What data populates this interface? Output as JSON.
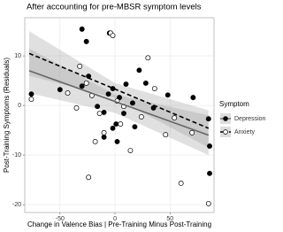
{
  "chart_data": {
    "type": "scatter",
    "title": "After accounting for pre-MBSR symptom levels",
    "x_label": "Change in Valence Bias | Pre-Training Minus Post-Training",
    "y_label": "Post-Training Symptoms (Residuals)",
    "legend_title": "Symptom",
    "legend_position": "right",
    "grid": true,
    "xlim": [
      -82,
      90
    ],
    "xticks": [
      -50,
      0,
      50
    ],
    "ylim": [
      -21.6,
      17.7
    ],
    "yticks": [
      -20,
      -10,
      0,
      10
    ],
    "series": [
      {
        "name": "Depression",
        "color": "#000000",
        "line_color": "#666666",
        "dashed": false,
        "x": [
          -30,
          -26,
          -5,
          -50,
          -76,
          -30,
          -24,
          -16,
          -10,
          -2,
          4,
          10,
          8,
          2,
          1,
          16,
          22,
          28,
          18,
          35,
          48,
          71,
          85,
          86,
          86,
          -10,
          -2,
          -6
        ],
        "values": [
          15.4,
          12.9,
          14.6,
          3.2,
          2.3,
          3.9,
          5.9,
          -0.2,
          -1.4,
          3.4,
          1.6,
          4.3,
          -1.6,
          -7.3,
          -3.75,
          0.5,
          7.1,
          4.5,
          -4.3,
          -0.5,
          2.1,
          1.6,
          -2.7,
          -8.2,
          -13.7,
          -6.4,
          -4.6,
          2.3
        ],
        "fit_x": [
          -78,
          0,
          85
        ],
        "fit_y": [
          7.0,
          0.8,
          -6.0
        ],
        "band_upper": [
          11.5,
          2.2,
          -2.0
        ],
        "band_lower": [
          2.5,
          -1.5,
          -10.0
        ]
      },
      {
        "name": "Anxiety",
        "color": "#ffffff",
        "line_color": "#000000",
        "dashed": true,
        "x": [
          -4,
          -2,
          -32,
          -35,
          -43,
          -26,
          -21,
          -18,
          -10,
          -24,
          2,
          8,
          14,
          24,
          30,
          36,
          46,
          54,
          60,
          70,
          85,
          -76,
          -14,
          5
        ],
        "values": [
          14.6,
          14.1,
          7.9,
          -0.5,
          2.5,
          4.5,
          2.0,
          -7.3,
          -5.5,
          -14.5,
          0.9,
          -0.2,
          -9.1,
          -2.3,
          9.6,
          3.4,
          -5.9,
          -2.5,
          -15.7,
          -5.5,
          -19.8,
          1.25,
          -1.6,
          -3.75
        ],
        "fit_x": [
          -78,
          0,
          85
        ],
        "fit_y": [
          10.5,
          3.3,
          -4.6
        ],
        "band_upper": [
          15.0,
          4.5,
          -1.0
        ],
        "band_lower": [
          6.0,
          1.5,
          -8.5
        ]
      }
    ]
  }
}
